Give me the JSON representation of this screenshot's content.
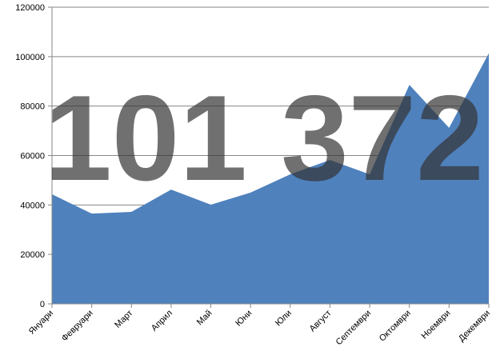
{
  "chart_data": {
    "type": "area",
    "categories": [
      "Януари",
      "Февруари",
      "Март",
      "Април",
      "Май",
      "Юни",
      "Юли",
      "Август",
      "Септември",
      "Октомври",
      "Ноември",
      "Декември"
    ],
    "values": [
      44300,
      36500,
      37200,
      46200,
      40100,
      45000,
      52400,
      58200,
      52400,
      88600,
      71200,
      101372
    ],
    "color": "#4f81bd",
    "ylim": [
      0,
      120000
    ],
    "yticks": [
      0,
      20000,
      40000,
      60000,
      80000,
      100000,
      120000
    ],
    "grid": true,
    "annotation": "101 372"
  }
}
